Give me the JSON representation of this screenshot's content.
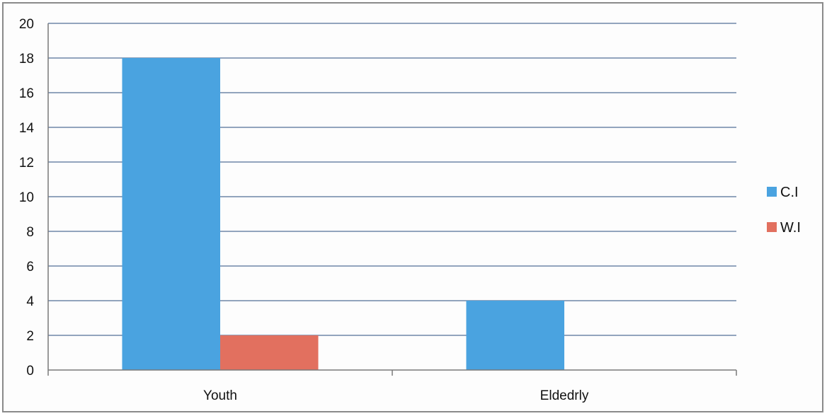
{
  "chart_data": {
    "type": "bar",
    "categories": [
      "Youth",
      "Eldedrly"
    ],
    "series": [
      {
        "name": "C.I",
        "values": [
          18,
          4
        ],
        "color": "#4aa3e0"
      },
      {
        "name": "W.I",
        "values": [
          2,
          0
        ],
        "color": "#e2705f"
      }
    ],
    "ylim": [
      0,
      20
    ],
    "yticks": [
      0,
      2,
      4,
      6,
      8,
      10,
      12,
      14,
      16,
      18,
      20
    ],
    "title": "",
    "xlabel": "",
    "ylabel": "",
    "grid": true,
    "legend_position": "right"
  }
}
